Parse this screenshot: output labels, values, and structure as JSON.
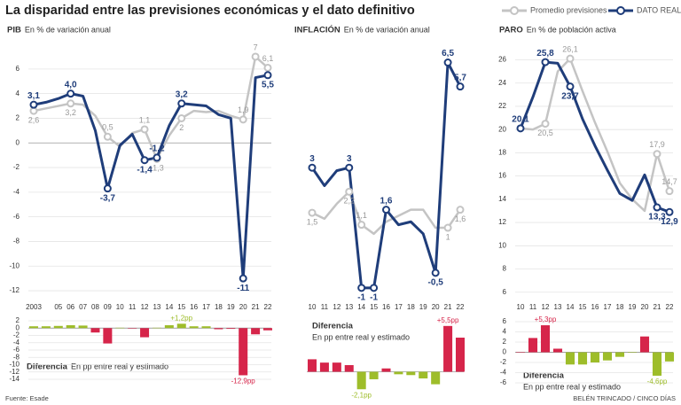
{
  "title": "La disparidad entre las previsiones económicas y el dato definitivo",
  "legend": [
    {
      "name": "Promedio previsiones",
      "color": "#c4c4c4"
    },
    {
      "name": "DATO REAL",
      "color": "#1f3d7a"
    }
  ],
  "source": "Fuente: Esade",
  "credit": "BELÉN TRINCADO / CINCO DÍAS",
  "chart_data": [
    {
      "type": "line",
      "title": "PIB",
      "subtitle": "En % de variación anual",
      "categories": [
        "2003",
        null,
        "05",
        "06",
        "07",
        "08",
        "09",
        "10",
        "11",
        "12",
        "13",
        "14",
        "15",
        "16",
        "17",
        "18",
        "19",
        "20",
        "21",
        "22"
      ],
      "series": [
        {
          "color": "#c4c4c4",
          "values": [
            2.6,
            2.8,
            3.0,
            3.2,
            3.1,
            2.2,
            0.5,
            -0.3,
            0.8,
            1.1,
            -1.3,
            0.6,
            2,
            2.6,
            2.5,
            2.6,
            2.2,
            1.9,
            7,
            6.1
          ],
          "value_labels": [
            "2,6",
            null,
            null,
            "3,2",
            null,
            null,
            "0,5",
            null,
            null,
            "1,1",
            "-1,3",
            null,
            "2",
            null,
            null,
            null,
            null,
            "1,9",
            "7",
            "6,1"
          ]
        },
        {
          "color": "#1f3d7a",
          "values": [
            3.1,
            3.3,
            3.6,
            4.0,
            3.8,
            1.0,
            -3.7,
            -0.2,
            0.7,
            -1.4,
            -1.2,
            1.4,
            3.2,
            3.1,
            3.0,
            2.3,
            2.0,
            -11,
            5.3,
            5.5
          ],
          "value_labels": [
            "3,1",
            null,
            null,
            "4,0",
            null,
            null,
            "-3,7",
            null,
            null,
            "-1,4",
            "-1,2",
            null,
            "3,2",
            null,
            null,
            null,
            null,
            "-11",
            null,
            "5,5"
          ]
        }
      ],
      "ylim": [
        -12.5,
        7.5
      ],
      "yticks": [
        6,
        4,
        2,
        0,
        -2,
        -4,
        -6,
        -8,
        -10,
        -12
      ]
    },
    {
      "type": "bar",
      "title": "Diferencia",
      "subtitle": "En pp entre real y estimado",
      "values": [
        0.5,
        0.5,
        0.6,
        0.8,
        0.7,
        -1.2,
        -4.2,
        0.1,
        -0.1,
        -2.5,
        0.1,
        0.8,
        1.2,
        0.5,
        0.5,
        -0.3,
        -0.2,
        -12.9,
        -1.7,
        -0.6
      ],
      "value_labels": [
        null,
        null,
        null,
        null,
        null,
        null,
        null,
        null,
        null,
        null,
        null,
        null,
        "+1,2pp",
        null,
        null,
        null,
        null,
        "-12,9pp",
        null,
        null
      ],
      "positive_color": "#9ebd2a",
      "negative_color": "#d6254a",
      "ylim": [
        -14,
        2
      ],
      "yticks": [
        2,
        0,
        -2,
        -4,
        -6,
        -8,
        -10,
        -12,
        -14
      ]
    },
    {
      "type": "line",
      "title": "INFLACIÓN",
      "subtitle": "En % de variación anual",
      "categories": [
        "10",
        "11",
        "12",
        "13",
        "14",
        "15",
        "16",
        "17",
        "18",
        "19",
        "20",
        "21",
        "22"
      ],
      "series": [
        {
          "color": "#c4c4c4",
          "values": [
            1.5,
            1.3,
            1.8,
            2.2,
            1.1,
            0.8,
            1.2,
            1.4,
            1.6,
            1.6,
            1.0,
            1,
            1.6
          ],
          "value_labels": [
            "1,5",
            null,
            null,
            "2,2",
            "1,1",
            null,
            null,
            null,
            null,
            null,
            null,
            "1",
            "1,6"
          ]
        },
        {
          "color": "#1f3d7a",
          "values": [
            3,
            2.4,
            2.9,
            3,
            -1,
            -1,
            1.6,
            1.1,
            1.2,
            0.8,
            -0.5,
            6.5,
            5.7
          ],
          "value_labels": [
            "3",
            null,
            null,
            "3",
            "-1",
            "-1",
            "1,6",
            null,
            null,
            null,
            "-0,5",
            "6,5",
            "5,7"
          ]
        }
      ],
      "ylim": [
        -1.3,
        6.9
      ]
    },
    {
      "type": "bar",
      "title": "Diferencia",
      "subtitle": "En pp entre real y estimado",
      "values": [
        1.5,
        1.1,
        1.1,
        0.8,
        -2.1,
        -0.9,
        0.4,
        -0.3,
        -0.4,
        -0.8,
        -1.5,
        5.5,
        4.1
      ],
      "value_labels": [
        null,
        null,
        null,
        null,
        "-2,1pp",
        null,
        null,
        null,
        null,
        null,
        null,
        "+5,5pp",
        null
      ],
      "positive_color": "#d6254a",
      "negative_color": "#9ebd2a",
      "ylim": [
        -2.5,
        5.8
      ]
    },
    {
      "type": "line",
      "title": "PARO",
      "subtitle": "En % de población activa",
      "categories": [
        "10",
        "11",
        "12",
        "13",
        "14",
        "15",
        "16",
        "17",
        "18",
        "19",
        "20",
        "21",
        "22"
      ],
      "series": [
        {
          "color": "#c4c4c4",
          "values": [
            20.1,
            20.0,
            20.5,
            25.0,
            26.1,
            23.3,
            20.6,
            18.1,
            15.4,
            14.0,
            13.0,
            17.9,
            14.7
          ],
          "value_labels": [
            null,
            null,
            "20,5",
            null,
            "26,1",
            null,
            null,
            null,
            null,
            null,
            null,
            "17,9",
            "14,7"
          ]
        },
        {
          "color": "#1f3d7a",
          "values": [
            20.1,
            22.8,
            25.8,
            25.7,
            23.7,
            20.9,
            18.6,
            16.5,
            14.5,
            13.9,
            16.1,
            13.3,
            12.9
          ],
          "value_labels": [
            "20,1",
            null,
            "25,8",
            null,
            "23,7",
            null,
            null,
            null,
            null,
            null,
            null,
            "13,3",
            "12,9"
          ]
        }
      ],
      "ylim": [
        5.6,
        26.8
      ],
      "yticks": [
        26,
        24,
        22,
        20,
        18,
        16,
        14,
        12,
        10,
        8,
        6
      ]
    },
    {
      "type": "bar",
      "title": "Diferencia",
      "subtitle": "En pp entre real y estimado",
      "values": [
        0,
        2.8,
        5.3,
        0.7,
        -2.4,
        -2.4,
        -2.0,
        -1.6,
        -0.9,
        -0.1,
        3.1,
        -4.6,
        -1.8
      ],
      "value_labels": [
        null,
        null,
        "+5,3pp",
        null,
        null,
        null,
        null,
        null,
        null,
        null,
        null,
        "-4,6pp",
        null
      ],
      "positive_color": "#d6254a",
      "negative_color": "#9ebd2a",
      "ylim": [
        -6,
        6
      ],
      "yticks": [
        6,
        4,
        2,
        0,
        -2,
        -4,
        -6
      ]
    }
  ]
}
